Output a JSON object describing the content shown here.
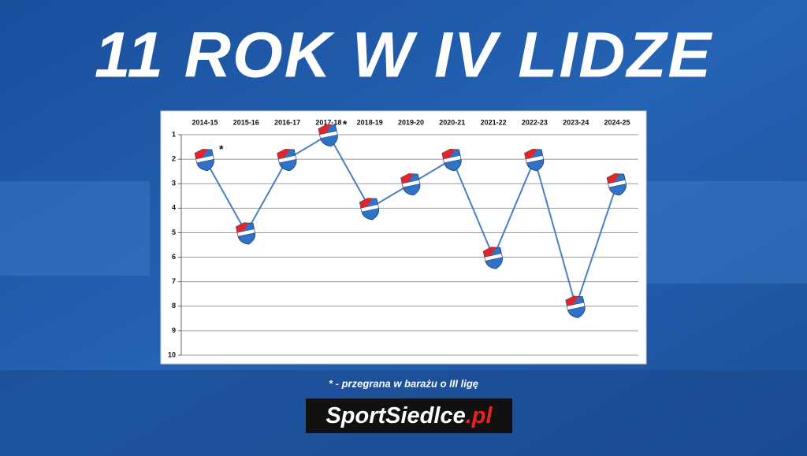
{
  "chart_data": {
    "type": "line",
    "title": "11 ROK W IV LIDZE",
    "categories": [
      "2014-15",
      "2015-16",
      "2016-17",
      "2017-18",
      "2018-19",
      "2019-20",
      "2020-21",
      "2021-22",
      "2022-23",
      "2023-24",
      "2024-25"
    ],
    "values": [
      2,
      5,
      2,
      1,
      4,
      3,
      2,
      6,
      2,
      8,
      3
    ],
    "color": "#4a7fc4",
    "ylim": [
      1,
      10
    ],
    "yticks": [
      1,
      2,
      3,
      4,
      5,
      6,
      7,
      8,
      9,
      10
    ],
    "y_inverted": true,
    "grid": true,
    "annotations": [
      {
        "text": "*",
        "category": "2014-15"
      },
      {
        "text": "*",
        "category": "2017-18"
      }
    ],
    "footnote": "* - przegrana w barażu o III ligę",
    "brand": {
      "name": "SportSiedlce",
      "suffix": ".pl"
    }
  }
}
